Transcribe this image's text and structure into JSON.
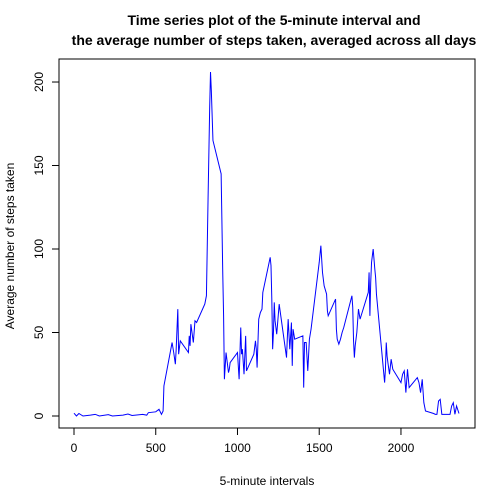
{
  "chart_data": {
    "type": "line",
    "title_line1": "Time series plot of the 5-minute interval and",
    "title_line2": "the average number of steps taken, averaged across all days",
    "xlabel": "5-minute intervals",
    "ylabel": "Average number of steps taken",
    "xlim": [
      0,
      2355
    ],
    "ylim": [
      0,
      206
    ],
    "x_ticks": [
      0,
      500,
      1000,
      1500,
      2000
    ],
    "y_ticks": [
      0,
      50,
      100,
      150,
      200
    ],
    "grid": false,
    "line_color": "#0000ff",
    "series": [
      {
        "x": [
          0,
          15,
          30,
          55,
          100,
          130,
          155,
          210,
          235,
          300,
          330,
          355,
          420,
          445,
          455,
          500,
          520,
          535,
          545,
          550,
          600,
          610,
          620,
          625,
          635,
          640,
          650,
          700,
          705,
          710,
          715,
          730,
          740,
          750,
          800,
          810,
          820,
          830,
          835,
          840,
          845,
          850,
          900,
          910,
          915,
          920,
          930,
          945,
          950,
          955,
          1000,
          1010,
          1020,
          1025,
          1030,
          1040,
          1050,
          1055,
          1100,
          1110,
          1115,
          1120,
          1130,
          1140,
          1150,
          1155,
          1200,
          1205,
          1210,
          1215,
          1220,
          1225,
          1230,
          1240,
          1255,
          1300,
          1305,
          1310,
          1320,
          1330,
          1335,
          1340,
          1350,
          1400,
          1405,
          1410,
          1420,
          1430,
          1440,
          1450,
          1500,
          1510,
          1520,
          1530,
          1545,
          1550,
          1555,
          1600,
          1605,
          1610,
          1620,
          1630,
          1640,
          1650,
          1700,
          1705,
          1710,
          1715,
          1720,
          1730,
          1740,
          1750,
          1800,
          1805,
          1810,
          1815,
          1820,
          1830,
          1840,
          1845,
          1850,
          1900,
          1905,
          1910,
          1915,
          1920,
          1930,
          1940,
          1950,
          2000,
          2010,
          2020,
          2030,
          2040,
          2050,
          2100,
          2110,
          2120,
          2130,
          2140,
          2150,
          2200,
          2210,
          2220,
          2230,
          2240,
          2250,
          2300,
          2310,
          2320,
          2330,
          2340,
          2355
        ],
        "y": [
          1.7,
          0,
          1.5,
          0,
          0.5,
          1.0,
          0,
          0.8,
          0,
          0.5,
          1.2,
          0.3,
          1.0,
          0.5,
          2.0,
          2.5,
          4,
          1,
          3,
          18,
          44,
          38,
          31,
          40,
          64,
          37,
          45,
          38,
          48,
          42,
          55,
          44,
          57,
          56,
          67,
          72,
          130,
          185,
          206,
          195,
          180,
          165,
          145,
          85,
          60,
          22,
          38,
          26,
          28,
          32,
          38,
          22,
          53,
          37,
          40,
          25,
          48,
          27,
          37,
          45,
          40,
          29,
          58,
          62,
          64,
          74,
          95,
          90,
          70,
          40,
          50,
          68,
          57,
          49,
          67,
          35,
          47,
          58,
          40,
          56,
          30,
          52,
          46,
          48,
          17,
          44,
          44,
          27,
          46,
          52,
          92,
          102,
          86,
          78,
          73,
          63,
          60,
          70,
          52,
          46,
          43,
          46,
          50,
          53,
          72,
          65,
          45,
          35,
          42,
          50,
          64,
          58,
          74,
          86,
          60,
          80,
          92,
          100,
          88,
          83,
          73,
          20,
          28,
          44,
          36,
          32,
          25,
          34,
          28,
          20,
          25,
          27,
          14,
          28,
          17,
          23,
          20,
          14,
          22,
          8,
          3,
          1.5,
          1,
          1,
          9,
          10,
          1,
          1,
          6,
          8,
          1,
          6,
          1.5
        ]
      }
    ]
  }
}
